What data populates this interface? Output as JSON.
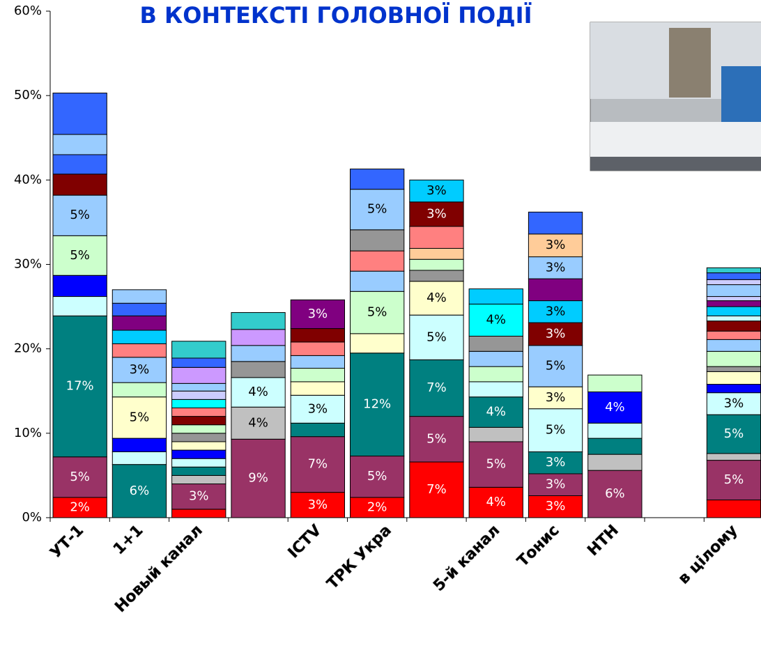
{
  "chart_data": {
    "type": "stacked_bar",
    "title": "В КОНТЕКСТІ ГОЛОВНОЇ ПОДІЇ",
    "categories": [
      "УТ-1",
      "1+1",
      "Новый канал",
      null,
      "ICTV",
      null,
      null,
      "5-й канал",
      "Тонис",
      "НТН",
      null,
      "в цілому"
    ],
    "x_label_texts": [
      "ТРК Укра"
    ],
    "ylim": [
      0,
      60
    ],
    "yticks": [
      {
        "value": 0,
        "label": "0%"
      },
      {
        "value": 10,
        "label": "10%"
      },
      {
        "value": 20,
        "label": "20%"
      },
      {
        "value": 30,
        "label": "30%"
      },
      {
        "value": 40,
        "label": "40%"
      },
      {
        "value": 50,
        "label": "50%"
      },
      {
        "value": 60,
        "label": "60%"
      }
    ],
    "stacks": [
      [
        {
          "value": 2.4,
          "color": "#ff0000",
          "label": "2%"
        },
        {
          "value": 4.8,
          "color": "#993366",
          "label": "5%"
        },
        {
          "value": 16.7,
          "color": "#008080",
          "label": "17%"
        },
        {
          "value": 2.3,
          "color": "#ccffff"
        },
        {
          "value": 2.5,
          "color": "#0000ff"
        },
        {
          "value": 4.7,
          "color": "#ccffcc",
          "label": "5%"
        },
        {
          "value": 4.8,
          "color": "#99ccff",
          "label": "5%"
        },
        {
          "value": 2.5,
          "color": "#800000"
        },
        {
          "value": 2.3,
          "color": "#3366ff"
        },
        {
          "value": 2.4,
          "color": "#99ccff"
        },
        {
          "value": 4.9,
          "color": "#3366ff"
        }
      ],
      [
        {
          "value": 6.3,
          "color": "#008080",
          "label": "6%"
        },
        {
          "value": 1.5,
          "color": "#ccffff"
        },
        {
          "value": 1.6,
          "color": "#0000ff"
        },
        {
          "value": 4.9,
          "color": "#ffffcc",
          "label": "5%"
        },
        {
          "value": 1.7,
          "color": "#ccffcc"
        },
        {
          "value": 3.0,
          "color": "#99ccff",
          "label": "3%"
        },
        {
          "value": 1.6,
          "color": "#ff8080"
        },
        {
          "value": 1.6,
          "color": "#00ccff"
        },
        {
          "value": 1.7,
          "color": "#800080"
        },
        {
          "value": 1.5,
          "color": "#3366ff"
        },
        {
          "value": 1.6,
          "color": "#99ccff"
        }
      ],
      [
        {
          "value": 1.0,
          "color": "#ff0000"
        },
        {
          "value": 3.0,
          "color": "#993366",
          "label": "3%"
        },
        {
          "value": 1.0,
          "color": "#c0c0c0"
        },
        {
          "value": 1.0,
          "color": "#008080"
        },
        {
          "value": 1.0,
          "color": "#ccffff"
        },
        {
          "value": 1.0,
          "color": "#0000ff"
        },
        {
          "value": 1.0,
          "color": "#ffffcc"
        },
        {
          "value": 1.0,
          "color": "#969696"
        },
        {
          "value": 1.0,
          "color": "#ccffcc"
        },
        {
          "value": 1.0,
          "color": "#800000"
        },
        {
          "value": 1.0,
          "color": "#ff8080"
        },
        {
          "value": 1.0,
          "color": "#00ffff"
        },
        {
          "value": 1.0,
          "color": "#ccccff"
        },
        {
          "value": 0.9,
          "color": "#99ccff"
        },
        {
          "value": 1.9,
          "color": "#cc99ff"
        },
        {
          "value": 1.1,
          "color": "#3366ff"
        },
        {
          "value": 2.0,
          "color": "#33cccc"
        }
      ],
      [
        {
          "value": 9.3,
          "color": "#993366",
          "label": "9%"
        },
        {
          "value": 3.8,
          "color": "#c0c0c0",
          "label": "4%"
        },
        {
          "value": 3.5,
          "color": "#ccffff",
          "label": "4%"
        },
        {
          "value": 1.9,
          "color": "#969696"
        },
        {
          "value": 1.9,
          "color": "#99ccff"
        },
        {
          "value": 1.9,
          "color": "#cc99ff"
        },
        {
          "value": 2.0,
          "color": "#33cccc"
        }
      ],
      [
        {
          "value": 3.0,
          "color": "#ff0000",
          "label": "3%"
        },
        {
          "value": 6.6,
          "color": "#993366",
          "label": "7%"
        },
        {
          "value": 1.6,
          "color": "#008080"
        },
        {
          "value": 3.3,
          "color": "#ccffff",
          "label": "3%"
        },
        {
          "value": 1.6,
          "color": "#ffffcc"
        },
        {
          "value": 1.6,
          "color": "#ccffcc"
        },
        {
          "value": 1.5,
          "color": "#99ccff"
        },
        {
          "value": 1.6,
          "color": "#ff8080"
        },
        {
          "value": 1.6,
          "color": "#800000"
        },
        {
          "value": 3.4,
          "color": "#800080",
          "label": "3%"
        }
      ],
      [
        {
          "value": 2.4,
          "color": "#ff0000",
          "label": "2%"
        },
        {
          "value": 4.9,
          "color": "#993366",
          "label": "5%"
        },
        {
          "value": 12.2,
          "color": "#008080",
          "label": "12%"
        },
        {
          "value": 2.3,
          "color": "#ffffcc"
        },
        {
          "value": 5.0,
          "color": "#ccffcc",
          "label": "5%"
        },
        {
          "value": 2.4,
          "color": "#99ccff"
        },
        {
          "value": 2.4,
          "color": "#ff8080"
        },
        {
          "value": 2.5,
          "color": "#969696"
        },
        {
          "value": 4.8,
          "color": "#99ccff",
          "label": "5%"
        },
        {
          "value": 2.4,
          "color": "#3366ff"
        }
      ],
      [
        {
          "value": 6.6,
          "color": "#ff0000",
          "label": "7%"
        },
        {
          "value": 5.4,
          "color": "#993366",
          "label": "5%"
        },
        {
          "value": 6.7,
          "color": "#008080",
          "label": "7%"
        },
        {
          "value": 5.3,
          "color": "#ccffff",
          "label": "5%"
        },
        {
          "value": 4.0,
          "color": "#ffffcc",
          "label": "4%"
        },
        {
          "value": 1.3,
          "color": "#969696"
        },
        {
          "value": 1.3,
          "color": "#ccffcc"
        },
        {
          "value": 1.3,
          "color": "#ffcc99"
        },
        {
          "value": 2.6,
          "color": "#ff8080"
        },
        {
          "value": 2.9,
          "color": "#800000",
          "label": "3%"
        },
        {
          "value": 2.6,
          "color": "#00ccff",
          "label": "3%"
        }
      ],
      [
        {
          "value": 3.6,
          "color": "#ff0000",
          "label": "4%"
        },
        {
          "value": 5.4,
          "color": "#993366",
          "label": "5%"
        },
        {
          "value": 1.7,
          "color": "#c0c0c0"
        },
        {
          "value": 3.6,
          "color": "#008080",
          "label": "4%"
        },
        {
          "value": 1.8,
          "color": "#ccffff"
        },
        {
          "value": 1.8,
          "color": "#ccffcc"
        },
        {
          "value": 1.8,
          "color": "#99ccff"
        },
        {
          "value": 1.8,
          "color": "#969696"
        },
        {
          "value": 3.8,
          "color": "#00ffff",
          "label": "4%"
        },
        {
          "value": 1.8,
          "color": "#00ccff"
        }
      ],
      [
        {
          "value": 2.6,
          "color": "#ff0000",
          "label": "3%"
        },
        {
          "value": 2.6,
          "color": "#993366",
          "label": "3%"
        },
        {
          "value": 2.6,
          "color": "#008080",
          "label": "3%"
        },
        {
          "value": 5.1,
          "color": "#ccffff",
          "label": "5%"
        },
        {
          "value": 2.6,
          "color": "#ffffcc",
          "label": "3%"
        },
        {
          "value": 4.9,
          "color": "#99ccff",
          "label": "5%"
        },
        {
          "value": 2.7,
          "color": "#800000",
          "label": "3%"
        },
        {
          "value": 2.6,
          "color": "#00ccff",
          "label": "3%"
        },
        {
          "value": 2.6,
          "color": "#800080"
        },
        {
          "value": 2.6,
          "color": "#99ccff",
          "label": "3%"
        },
        {
          "value": 2.7,
          "color": "#ffcc99",
          "label": "3%"
        },
        {
          "value": 2.6,
          "color": "#3366ff"
        }
      ],
      [
        {
          "value": 5.6,
          "color": "#993366",
          "label": "6%"
        },
        {
          "value": 1.9,
          "color": "#c0c0c0"
        },
        {
          "value": 1.9,
          "color": "#008080"
        },
        {
          "value": 1.8,
          "color": "#ccffff"
        },
        {
          "value": 3.7,
          "color": "#0000ff",
          "label": "4%"
        },
        {
          "value": 2.0,
          "color": "#ccffcc"
        }
      ],
      [],
      [
        {
          "value": 2.1,
          "color": "#ff0000"
        },
        {
          "value": 4.7,
          "color": "#993366",
          "label": "5%"
        },
        {
          "value": 0.8,
          "color": "#c0c0c0"
        },
        {
          "value": 4.6,
          "color": "#008080",
          "label": "5%"
        },
        {
          "value": 2.6,
          "color": "#ccffff",
          "label": "3%"
        },
        {
          "value": 1.0,
          "color": "#0000ff"
        },
        {
          "value": 1.5,
          "color": "#ffffcc"
        },
        {
          "value": 0.6,
          "color": "#969696"
        },
        {
          "value": 1.8,
          "color": "#ccffcc"
        },
        {
          "value": 1.4,
          "color": "#99ccff"
        },
        {
          "value": 1.0,
          "color": "#ff8080"
        },
        {
          "value": 1.2,
          "color": "#800000"
        },
        {
          "value": 0.6,
          "color": "#ccffff"
        },
        {
          "value": 1.1,
          "color": "#00ccff"
        },
        {
          "value": 0.7,
          "color": "#800080"
        },
        {
          "value": 0.5,
          "color": "#ccccff"
        },
        {
          "value": 1.4,
          "color": "#99ccff"
        },
        {
          "value": 0.6,
          "color": "#ccccff"
        },
        {
          "value": 0.8,
          "color": "#3366ff"
        },
        {
          "value": 0.6,
          "color": "#33cccc"
        }
      ]
    ]
  }
}
